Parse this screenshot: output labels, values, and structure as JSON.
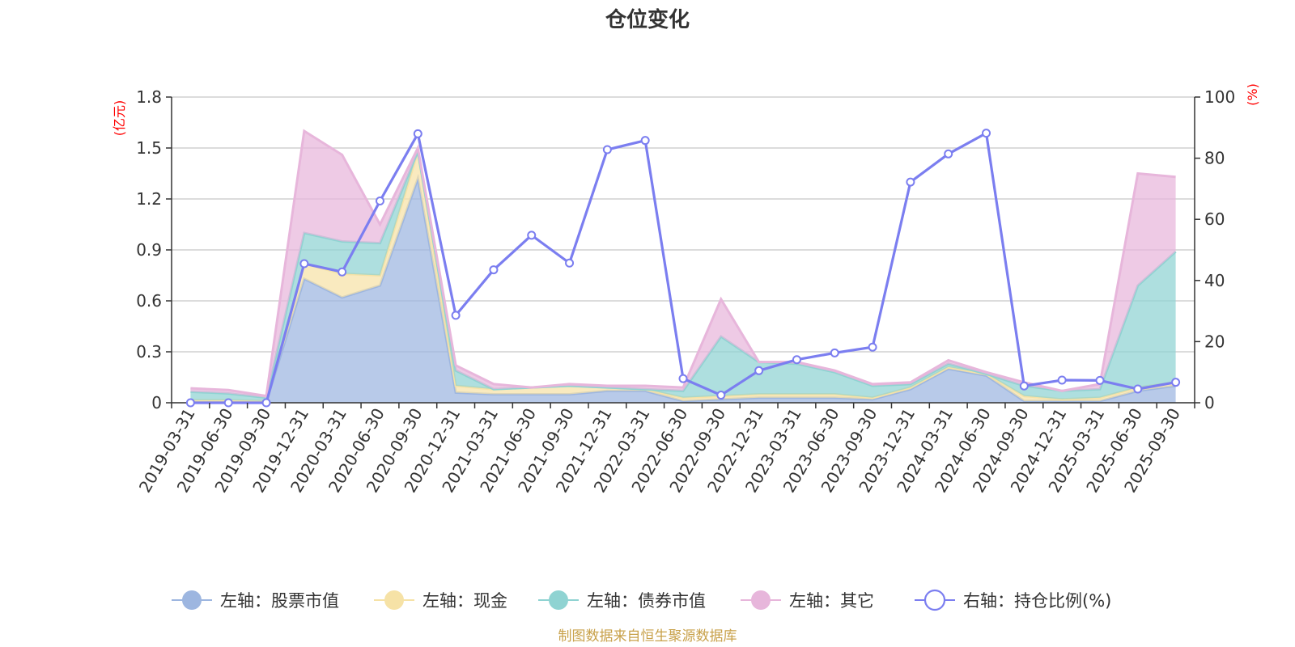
{
  "chart_data": {
    "type": "area",
    "title": "仓位变化",
    "left_axis": {
      "unit": "(亿元)",
      "ticks": [
        "0",
        "0.3",
        "0.6",
        "0.9",
        "1.2",
        "1.5",
        "1.8"
      ],
      "range": [
        0,
        1.8
      ]
    },
    "right_axis": {
      "unit": "(%)",
      "ticks": [
        "0",
        "20",
        "40",
        "60",
        "80",
        "100"
      ],
      "range": [
        0,
        100
      ]
    },
    "categories": [
      "2019-03-31",
      "2019-06-30",
      "2019-09-30",
      "2019-12-31",
      "2020-03-31",
      "2020-06-30",
      "2020-09-30",
      "2020-12-31",
      "2021-03-31",
      "2021-06-30",
      "2021-09-30",
      "2021-12-31",
      "2022-03-31",
      "2022-06-30",
      "2022-09-30",
      "2022-12-31",
      "2023-03-31",
      "2023-06-30",
      "2023-09-30",
      "2023-12-31",
      "2024-03-31",
      "2024-06-30",
      "2024-09-30",
      "2024-12-31",
      "2025-03-31",
      "2025-06-30",
      "2025-09-30"
    ],
    "series": [
      {
        "name": "左轴：股票市值",
        "axis": "left",
        "color": "#9db6e0",
        "stack_top_color": "#a9bde0",
        "values": [
          0.005,
          0.005,
          0.005,
          0.73,
          0.62,
          0.69,
          1.32,
          0.06,
          0.05,
          0.05,
          0.05,
          0.07,
          0.07,
          0.01,
          0.02,
          0.03,
          0.03,
          0.03,
          0.02,
          0.08,
          0.2,
          0.16,
          0.01,
          0.01,
          0.01,
          0.07,
          0.1
        ]
      },
      {
        "name": "左轴：现金",
        "axis": "left",
        "color": "#f6e2a6",
        "values": [
          0.01,
          0.01,
          0.005,
          0.09,
          0.14,
          0.06,
          0.16,
          0.04,
          0.03,
          0.04,
          0.05,
          0.02,
          0.01,
          0.02,
          0.02,
          0.02,
          0.02,
          0.02,
          0.01,
          0.01,
          0.01,
          0.01,
          0.03,
          0.01,
          0.02,
          0.02,
          0.02
        ]
      },
      {
        "name": "左轴：债券市值",
        "axis": "left",
        "color": "#8fd3d2",
        "values": [
          0.05,
          0.04,
          0.02,
          0.18,
          0.19,
          0.19,
          0.0,
          0.09,
          0.0,
          0.0,
          0.0,
          0.0,
          0.0,
          0.04,
          0.35,
          0.19,
          0.18,
          0.13,
          0.07,
          0.02,
          0.02,
          0.0,
          0.06,
          0.05,
          0.05,
          0.6,
          0.77
        ]
      },
      {
        "name": "左轴：其它",
        "axis": "left",
        "color": "#e7b6db",
        "values": [
          0.02,
          0.02,
          0.01,
          0.6,
          0.51,
          0.11,
          0.02,
          0.03,
          0.03,
          0.0,
          0.01,
          0.01,
          0.02,
          0.02,
          0.22,
          0.0,
          0.01,
          0.01,
          0.01,
          0.01,
          0.02,
          0.01,
          0.02,
          0.0,
          0.03,
          0.66,
          0.44
        ]
      },
      {
        "name": "右轴：持仓比例(%)",
        "axis": "right",
        "color": "#7b7ef0",
        "values": [
          0,
          0,
          0,
          45.5,
          42.8,
          66,
          88,
          28.6,
          43.5,
          54.8,
          45.7,
          82.8,
          85.8,
          7.9,
          2.5,
          10.5,
          14.1,
          16.3,
          18.2,
          72.2,
          81.4,
          88.2,
          5.5,
          7.4,
          7.3,
          4.5,
          6.7
        ]
      }
    ],
    "legend_position": "bottom"
  },
  "source_text": "制图数据来自恒生聚源数据库"
}
